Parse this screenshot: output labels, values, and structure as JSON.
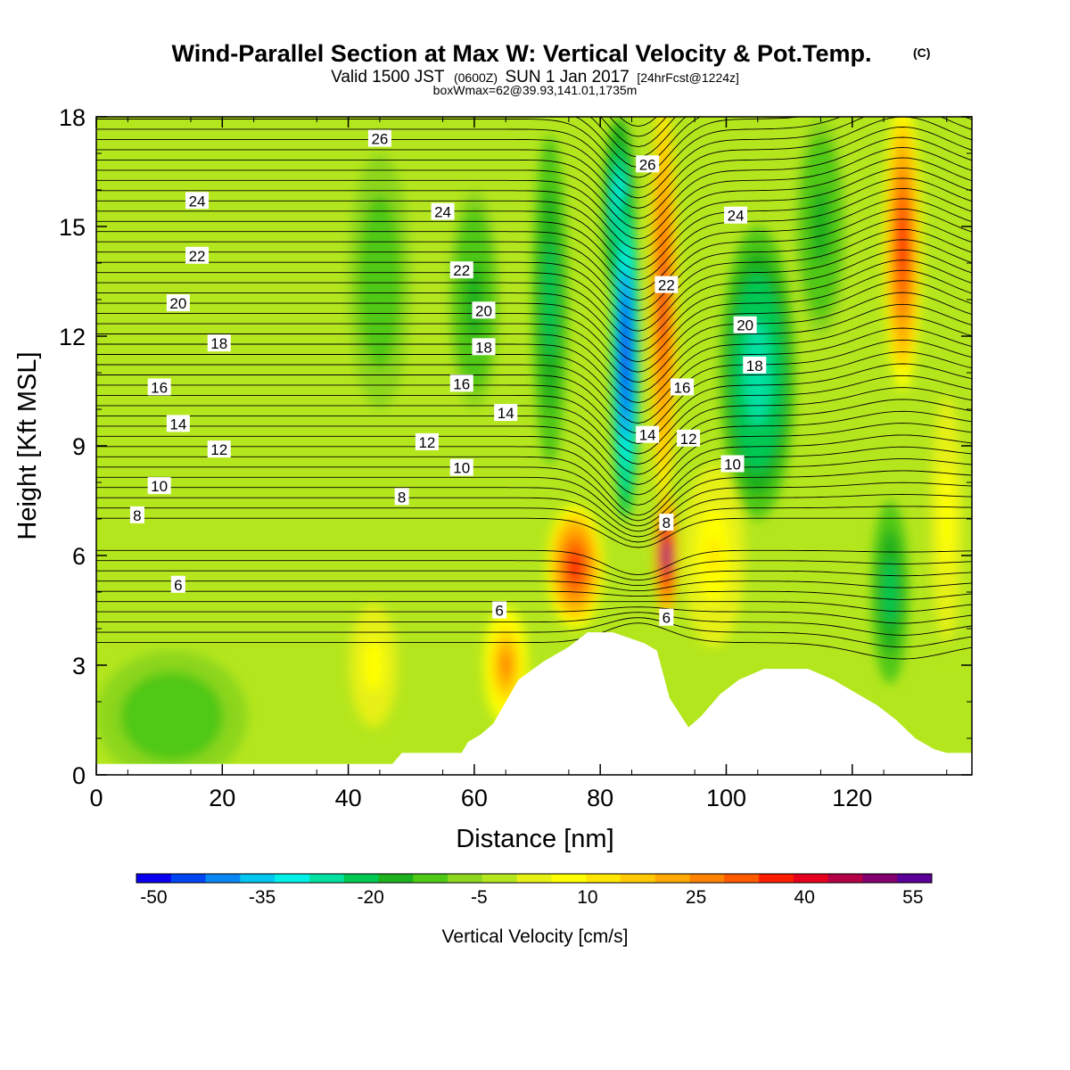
{
  "chart_data": {
    "type": "heatmap",
    "title": "Wind-Parallel Section at Max W: Vertical Velocity & Pot.Temp.",
    "title_suffix": "(C)",
    "subtitle": {
      "lead": "Valid 1500 JST",
      "utc": "(0600Z)",
      "date": "SUN 1 Jan 2017",
      "forecast": "[24hrFcst@1224z]"
    },
    "subtitle2": "boxWmax=62@39.93,141.01,1735m",
    "xlabel": "Distance [nm]",
    "ylabel": "Height [Kft MSL]",
    "xlim": [
      0,
      139
    ],
    "ylim": [
      0,
      18
    ],
    "xticks": [
      "0",
      "20",
      "40",
      "60",
      "80",
      "100",
      "120"
    ],
    "yticks": [
      "0",
      "3",
      "6",
      "9",
      "12",
      "15",
      "18"
    ],
    "xtick_values": [
      0,
      20,
      40,
      60,
      80,
      100,
      120
    ],
    "ytick_values": [
      0,
      3,
      6,
      9,
      12,
      15,
      18
    ],
    "colorbar": {
      "title": "Vertical Velocity [cm/s]",
      "tick_labels": [
        "-50",
        "-35",
        "-20",
        "-5",
        "10",
        "25",
        "40",
        "55"
      ],
      "tick_values": [
        -50,
        -35,
        -20,
        -5,
        10,
        25,
        40,
        55
      ],
      "range": [
        -50,
        60
      ],
      "step": 5,
      "colors": [
        "#0a00f0",
        "#0046f5",
        "#0a87f5",
        "#00c6f0",
        "#00f0e8",
        "#00e0a0",
        "#00c853",
        "#1eb01e",
        "#50c818",
        "#8cd61e",
        "#b4e61e",
        "#e6f014",
        "#ffff00",
        "#ffe600",
        "#ffc800",
        "#ffaa00",
        "#ff8200",
        "#ff5a00",
        "#ff1e00",
        "#e6001e",
        "#b40046",
        "#82006e",
        "#5a0096"
      ]
    },
    "terrain_profile": [
      [
        0,
        0.3
      ],
      [
        47,
        0.3
      ],
      [
        48.5,
        0.6
      ],
      [
        58,
        0.6
      ],
      [
        59,
        0.9
      ],
      [
        61,
        1.1
      ],
      [
        63,
        1.4
      ],
      [
        65,
        2.0
      ],
      [
        67,
        2.6
      ],
      [
        71,
        3.1
      ],
      [
        75,
        3.5
      ],
      [
        78,
        3.9
      ],
      [
        82,
        3.9
      ],
      [
        87,
        3.6
      ],
      [
        89,
        3.4
      ],
      [
        91,
        2.1
      ],
      [
        94,
        1.3
      ],
      [
        96,
        1.6
      ],
      [
        99,
        2.2
      ],
      [
        102,
        2.6
      ],
      [
        106,
        2.9
      ],
      [
        113,
        2.9
      ],
      [
        117,
        2.6
      ],
      [
        120,
        2.3
      ],
      [
        124,
        1.9
      ],
      [
        127,
        1.5
      ],
      [
        130,
        1.0
      ],
      [
        133,
        0.7
      ],
      [
        135,
        0.6
      ],
      [
        139,
        0.6
      ]
    ],
    "vertical_velocity_features": [
      {
        "x": 84,
        "y": 11.5,
        "rx": 2.2,
        "ry": 4.5,
        "value": -48
      },
      {
        "x": 83,
        "y": 15.5,
        "rx": 2.5,
        "ry": 2.5,
        "value": -30
      },
      {
        "x": 90,
        "y": 13.0,
        "rx": 2.2,
        "ry": 5.5,
        "value": 45
      },
      {
        "x": 90.5,
        "y": 6.0,
        "rx": 1.8,
        "ry": 1.7,
        "value": 60
      },
      {
        "x": 76,
        "y": 5.7,
        "rx": 4.5,
        "ry": 1.7,
        "value": 42
      },
      {
        "x": 65,
        "y": 3.0,
        "rx": 3.5,
        "ry": 1.6,
        "value": 30
      },
      {
        "x": 105,
        "y": 11.0,
        "rx": 6.0,
        "ry": 4.0,
        "value": -25
      },
      {
        "x": 128,
        "y": 14.5,
        "rx": 3.0,
        "ry": 4.0,
        "value": 42
      },
      {
        "x": 126,
        "y": 5.0,
        "rx": 3.0,
        "ry": 2.5,
        "value": -20
      },
      {
        "x": 72,
        "y": 13.0,
        "rx": 2.8,
        "ry": 4.5,
        "value": -20
      },
      {
        "x": 60,
        "y": 13.0,
        "rx": 4.0,
        "ry": 3.0,
        "value": -12
      },
      {
        "x": 45,
        "y": 13.5,
        "rx": 5.0,
        "ry": 3.5,
        "value": -10
      },
      {
        "x": 44,
        "y": 3.0,
        "rx": 4.5,
        "ry": 2.0,
        "value": 12
      },
      {
        "x": 12,
        "y": 1.6,
        "rx": 12.0,
        "ry": 1.8,
        "value": -10
      },
      {
        "x": 98,
        "y": 6.0,
        "rx": 5.0,
        "ry": 2.5,
        "value": 15
      },
      {
        "x": 115,
        "y": 15.0,
        "rx": 4.0,
        "ry": 3.0,
        "value": -12
      },
      {
        "x": 135,
        "y": 7.0,
        "rx": 3.0,
        "ry": 4.0,
        "value": 12
      }
    ],
    "isotherm_labels": [
      {
        "text": "26",
        "x": 45,
        "y": 17.4
      },
      {
        "text": "24",
        "x": 16,
        "y": 15.7
      },
      {
        "text": "24",
        "x": 55,
        "y": 15.4
      },
      {
        "text": "22",
        "x": 16,
        "y": 14.2
      },
      {
        "text": "22",
        "x": 58,
        "y": 13.8
      },
      {
        "text": "20",
        "x": 13,
        "y": 12.9
      },
      {
        "text": "20",
        "x": 61.5,
        "y": 12.7
      },
      {
        "text": "18",
        "x": 19.5,
        "y": 11.8
      },
      {
        "text": "18",
        "x": 61.5,
        "y": 11.7
      },
      {
        "text": "16",
        "x": 10,
        "y": 10.6
      },
      {
        "text": "16",
        "x": 58,
        "y": 10.7
      },
      {
        "text": "14",
        "x": 13,
        "y": 9.6
      },
      {
        "text": "14",
        "x": 65,
        "y": 9.9
      },
      {
        "text": "12",
        "x": 19.5,
        "y": 8.9
      },
      {
        "text": "12",
        "x": 52.5,
        "y": 9.1
      },
      {
        "text": "10",
        "x": 10,
        "y": 7.9
      },
      {
        "text": "10",
        "x": 58,
        "y": 8.4
      },
      {
        "text": "8",
        "x": 6.5,
        "y": 7.1
      },
      {
        "text": "8",
        "x": 48.5,
        "y": 7.6
      },
      {
        "text": "6",
        "x": 13,
        "y": 5.2
      },
      {
        "text": "6",
        "x": 64,
        "y": 4.5
      },
      {
        "text": "26",
        "x": 87.5,
        "y": 16.7
      },
      {
        "text": "24",
        "x": 101.5,
        "y": 15.3
      },
      {
        "text": "22",
        "x": 90.5,
        "y": 13.4
      },
      {
        "text": "20",
        "x": 103,
        "y": 12.3
      },
      {
        "text": "18",
        "x": 104.5,
        "y": 11.2
      },
      {
        "text": "16",
        "x": 93,
        "y": 10.6
      },
      {
        "text": "14",
        "x": 87.5,
        "y": 9.3
      },
      {
        "text": "12",
        "x": 94,
        "y": 9.2
      },
      {
        "text": "10",
        "x": 101,
        "y": 8.5
      },
      {
        "text": "8",
        "x": 90.5,
        "y": 6.9
      },
      {
        "text": "6",
        "x": 90.5,
        "y": 4.3
      }
    ]
  }
}
